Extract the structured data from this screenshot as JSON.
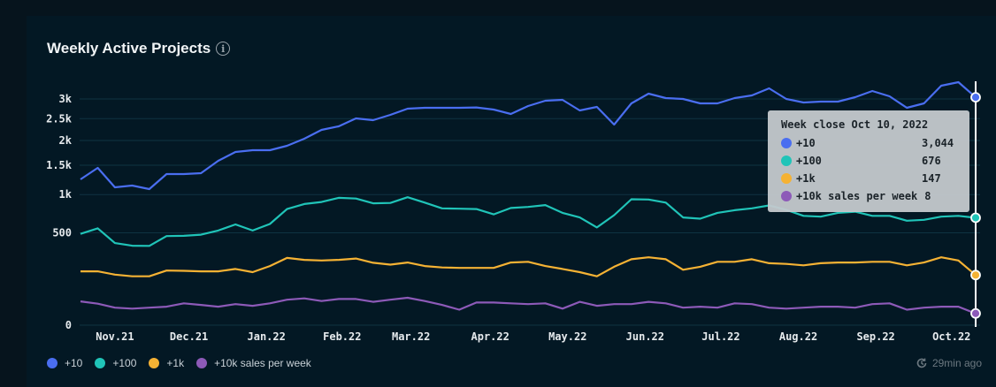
{
  "card": {
    "title": "Weekly Active Projects",
    "info_icon": "info-circle-icon",
    "updated": "29min ago",
    "updated_icon": "clock-refresh-icon"
  },
  "tooltip": {
    "header": "Week close Oct 10, 2022",
    "rows": [
      {
        "label": "+10",
        "value": "3,044",
        "color": "#4a6ef0"
      },
      {
        "label": "+100",
        "value": "676",
        "color": "#20c4b8"
      },
      {
        "label": "+1k",
        "value": "147",
        "color": "#f5b234"
      },
      {
        "label": "+10k sales per week",
        "value": "8",
        "color": "#8d5ab8"
      }
    ]
  },
  "chart_data": {
    "type": "line",
    "title": "Weekly Active Projects",
    "xlabel": "",
    "ylabel": "",
    "y_scale": "sqrt",
    "ylim": [
      0,
      3500
    ],
    "yticks": [
      0,
      500,
      1000,
      1500,
      2000,
      2500,
      3000
    ],
    "ytick_labels": [
      "0",
      "500",
      "1k",
      "1.5k",
      "2k",
      "2.5k",
      "3k"
    ],
    "xtick_labels": [
      "Nov.21",
      "Dec.21",
      "Jan.22",
      "Feb.22",
      "Mar.22",
      "Apr.22",
      "May.22",
      "Jun.22",
      "Jul.22",
      "Aug.22",
      "Sep.22",
      "Oct.22"
    ],
    "xtick_positions": [
      2,
      6.3,
      10.8,
      15.2,
      19.2,
      23.8,
      28.3,
      32.8,
      37.2,
      41.7,
      46.2,
      50.6
    ],
    "grid": true,
    "legend": "bottom-left",
    "hover_index": 52,
    "series": [
      {
        "name": "+10",
        "color": "#4a6ef0",
        "values": [
          1246,
          1450,
          1114,
          1143,
          1086,
          1339,
          1339,
          1354,
          1583,
          1759,
          1795,
          1795,
          1886,
          2038,
          2236,
          2318,
          2506,
          2464,
          2593,
          2748,
          2770,
          2770,
          2770,
          2780,
          2725,
          2615,
          2815,
          2953,
          2977,
          2703,
          2793,
          2358,
          2884,
          3142,
          3023,
          3000,
          2884,
          2884,
          3023,
          3094,
          3288,
          3000,
          2907,
          2930,
          2930,
          3047,
          3214,
          3070,
          2770,
          2884,
          3362,
          3462,
          3044
        ]
      },
      {
        "name": "+100",
        "color": "#20c4b8",
        "values": [
          488,
          550,
          395,
          370,
          368,
          465,
          468,
          480,
          525,
          595,
          525,
          600,
          790,
          860,
          890,
          950,
          940,
          870,
          875,
          960,
          880,
          800,
          795,
          790,
          720,
          805,
          820,
          845,
          740,
          680,
          560,
          710,
          930,
          925,
          880,
          680,
          665,
          740,
          775,
          800,
          840,
          780,
          700,
          690,
          740,
          755,
          700,
          700,
          640,
          650,
          690,
          700,
          676
        ]
      },
      {
        "name": "+1k",
        "color": "#f5b234",
        "values": [
          170,
          170,
          150,
          140,
          140,
          175,
          173,
          170,
          170,
          185,
          165,
          205,
          265,
          250,
          245,
          250,
          260,
          228,
          215,
          230,
          205,
          195,
          192,
          192,
          192,
          230,
          235,
          205,
          185,
          165,
          140,
          200,
          255,
          270,
          255,
          180,
          200,
          235,
          235,
          255,
          225,
          220,
          210,
          225,
          230,
          230,
          235,
          235,
          210,
          230,
          270,
          245,
          147
        ]
      },
      {
        "name": "+10k sales per week",
        "color": "#8d5ab8",
        "values": [
          33,
          27,
          18,
          16,
          18,
          20,
          28,
          24,
          20,
          26,
          22,
          28,
          38,
          42,
          34,
          40,
          40,
          32,
          38,
          44,
          34,
          24,
          14,
          30,
          30,
          28,
          26,
          28,
          16,
          32,
          22,
          26,
          26,
          32,
          28,
          18,
          20,
          18,
          28,
          26,
          18,
          16,
          18,
          20,
          20,
          18,
          26,
          28,
          14,
          18,
          20,
          20,
          8
        ]
      }
    ]
  }
}
